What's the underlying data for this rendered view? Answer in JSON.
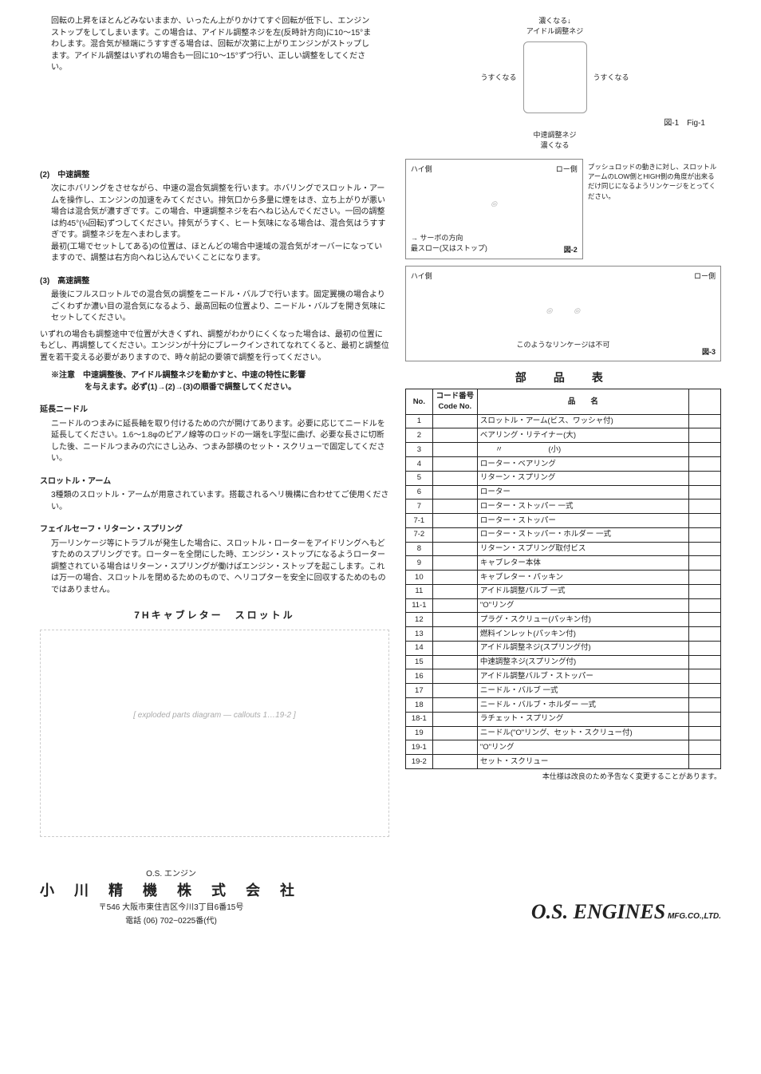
{
  "top": {
    "para1": "回転の上昇をほとんどみないままか、いったん上がりかけてすぐ回転が低下し、エンジンストップをしてしまいます。この場合は、アイドル調整ネジを左(反時計方向)に10〜15°まわします。混合気が極端にうすすぎる場合は、回転が次第に上がりエンジンがストップします。アイドル調整はいずれの場合も一回に10〜15°ずつ行い、正しい調整をしてください。",
    "fig1_top": "濃くなる↓",
    "fig1_label1": "アイドル調整ネジ",
    "fig1_right": "うすくなる",
    "fig1_left": "うすくなる",
    "fig1_bottom": "濃くなる",
    "fig1_label2": "中速調整ネジ",
    "fig1_cap": "図-1　Fig-1"
  },
  "sec2": {
    "title": "(2)　中速調整",
    "body": "次にホバリングをさせながら、中速の混合気調整を行います。ホバリングでスロットル・アームを操作し、エンジンの加速をみてください。排気口から多量に煙をはき、立ち上がりが悪い場合は混合気が濃すぎです。この場合、中速調整ネジを右へねじ込んでください。一回の調整は約45°(⅛回転)ずつしてください。排気がうすく、ヒート気味になる場合は、混合気はうすすぎです。調整ネジを左へまわします。\n最初(工場でセットしてある)の位置は、ほとんどの場合中速域の混合気がオーバーになっていますので、調整は右方向へねじ込んでいくことになります。"
  },
  "sec3": {
    "title": "(3)　高速調整",
    "body1": "最後にフルスロットルでの混合気の調整をニードル・バルブで行います。固定翼機の場合よりごくわずか濃い目の混合気になるよう、最高回転の位置より、ニードル・バルブを開き気味にセットしてください。",
    "body2": "いずれの場合も調整途中で位置が大きくずれ、調整がわかりにくくなった場合は、最初の位置にもどし、再調整してください。エンジンが十分にブレークインされてなれてくると、最初と調整位置を若干変える必要がありますので、時々前記の要領で調整を行ってください。",
    "note1": "※注意　中速調整後、アイドル調整ネジを動かすと、中速の特性に影響",
    "note2": "を与えます。必ず(1)→(2)→(3)の順番で調整してください。"
  },
  "ext": {
    "title": "延長ニードル",
    "body": "ニードルのつまみに延長軸を取り付けるための穴が開けてあります。必要に応じてニードルを延長してください。1.6〜1.8φのピアノ線等のロッドの一端をL字型に曲げ、必要な長さに切断した後、ニードルつまみの穴にさし込み、つまみ部横のセット・スクリューで固定してください。"
  },
  "arm": {
    "title": "スロットル・アーム",
    "body": "3種類のスロットル・アームが用意されています。搭載されるヘリ機構に合わせてご使用ください。"
  },
  "fail": {
    "title": "フェイルセーフ・リターン・スプリング",
    "body": "万一リンケージ等にトラブルが発生した場合に、スロットル・ローターをアイドリングへもどすためのスプリングです。ローターを全閉にした時、エンジン・ストップになるようローター調整されている場合はリターン・スプリングが働けばエンジン・ストップを起こします。これは万一の場合、スロットルを閉めるためのもので、ヘリコプターを安全に回収するためのものではありません。"
  },
  "exploded_title": "7Hキャブレター　スロットル",
  "link_diag": {
    "note_right": "プッシュロッドの動きに対し、スロットルアームのLOW側とHIGH側の角度が出来るだけ同じになるようリンケージをとってください。",
    "hi": "ハイ側",
    "lo": "ロー側",
    "servo": "→ サーボの方向",
    "slow": "最スロー(又はストップ)",
    "fig2": "図-2",
    "caption": "このようなリンケージは不可",
    "fig3": "図-3"
  },
  "parts_title": "部　品　表",
  "parts_header": {
    "no": "No.",
    "code": "コード番号\nCode No.",
    "name": "品　　名"
  },
  "parts": [
    {
      "no": "1",
      "name": "スロットル・アーム(ビス、ワッシャ付)"
    },
    {
      "no": "2",
      "name": "ベアリング・リテイナー(大)"
    },
    {
      "no": "3",
      "name": "　　〃　　　　　　(小)"
    },
    {
      "no": "4",
      "name": "ローター・ベアリング"
    },
    {
      "no": "5",
      "name": "リターン・スプリング"
    },
    {
      "no": "6",
      "name": "ローター"
    },
    {
      "no": "7",
      "name": "ローター・ストッパー 一式"
    },
    {
      "no": "7-1",
      "name": "ローター・ストッパー"
    },
    {
      "no": "7-2",
      "name": "ローター・ストッパー・ホルダー 一式"
    },
    {
      "no": "8",
      "name": "リターン・スプリング取付ビス"
    },
    {
      "no": "9",
      "name": "キャブレター本体"
    },
    {
      "no": "10",
      "name": "キャブレター・パッキン"
    },
    {
      "no": "11",
      "name": "アイドル調整バルブ 一式"
    },
    {
      "no": "11-1",
      "name": "\"O\"リング"
    },
    {
      "no": "12",
      "name": "プラグ・スクリュー(パッキン付)"
    },
    {
      "no": "13",
      "name": "燃料インレット(パッキン付)"
    },
    {
      "no": "14",
      "name": "アイドル調整ネジ(スプリング付)"
    },
    {
      "no": "15",
      "name": "中速調整ネジ(スプリング付)"
    },
    {
      "no": "16",
      "name": "アイドル調整バルブ・ストッパー"
    },
    {
      "no": "17",
      "name": "ニードル・バルブ 一式"
    },
    {
      "no": "18",
      "name": "ニードル・バルブ・ホルダー 一式"
    },
    {
      "no": "18-1",
      "name": "ラチェット・スプリング"
    },
    {
      "no": "19",
      "name": "ニードル(\"O\"リング、セット・スクリュー付)"
    },
    {
      "no": "19-1",
      "name": "\"O\"リング"
    },
    {
      "no": "19-2",
      "name": "セット・スクリュー"
    }
  ],
  "table_note": "本仕様は改良のため予告なく変更することがあります。",
  "footer": {
    "os": "O.S. エンジン",
    "company": "小 川 精 機 株 式 会 社",
    "addr1": "〒546 大阪市東住吉区今川3丁目6番15号",
    "addr2": "電話 (06) 702−0225番(代)",
    "brand": "O.S. ENGINES",
    "brand_sub": "MFG.CO.,LTD."
  }
}
